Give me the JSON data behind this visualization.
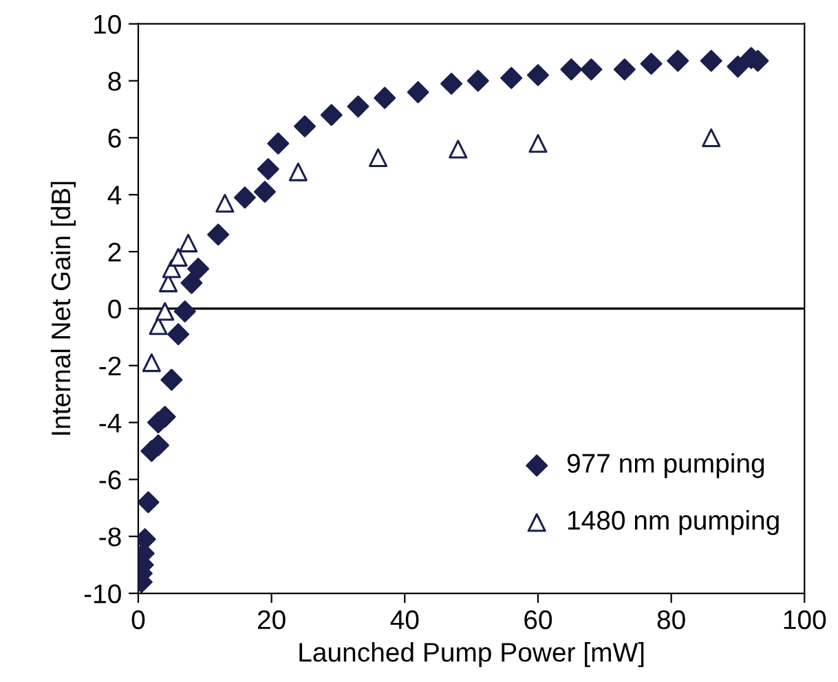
{
  "chart_data": {
    "type": "scatter",
    "xlabel": "Launched Pump Power [mW]",
    "ylabel": "Internal Net Gain [dB]",
    "xlim": [
      0,
      100
    ],
    "ylim": [
      -10,
      10
    ],
    "xticks": [
      0,
      20,
      40,
      60,
      80,
      100
    ],
    "yticks": [
      -10,
      -8,
      -6,
      -4,
      -2,
      0,
      2,
      4,
      6,
      8,
      10
    ],
    "grid": false,
    "legend": "bottom right",
    "ref_lines": [
      {
        "axis": "y",
        "value": 0,
        "color": "#000000"
      }
    ],
    "series": [
      {
        "name": "977 nm pumping",
        "color": "#1a1f4e",
        "marker": "diamond",
        "x": [
          0.5,
          0.5,
          0.7,
          0.8,
          1,
          1.5,
          2,
          3,
          3,
          4,
          5,
          6,
          7,
          8,
          8.5,
          9,
          12,
          16,
          19,
          19.5,
          21,
          25,
          29,
          33,
          37,
          42,
          47,
          51,
          56,
          60,
          65,
          68,
          73,
          77,
          81,
          86,
          90,
          92,
          93
        ],
        "values": [
          -9.6,
          -9.3,
          -9.0,
          -8.6,
          -8.1,
          -6.8,
          -5.0,
          -4.8,
          -4.0,
          -3.8,
          -2.5,
          -0.9,
          -0.1,
          0.9,
          null,
          1.4,
          2.6,
          3.9,
          4.1,
          4.9,
          5.8,
          6.4,
          6.8,
          7.1,
          7.4,
          7.6,
          7.9,
          8.0,
          8.1,
          8.2,
          8.4,
          8.4,
          8.4,
          8.6,
          8.7,
          8.7,
          8.5,
          8.8,
          8.7
        ]
      },
      {
        "name": "1480 nm pumping",
        "color": "#1a1f4e",
        "marker": "triangle",
        "x": [
          2,
          3,
          4,
          4.5,
          5,
          6,
          7.5,
          13,
          24,
          36,
          48,
          60,
          86
        ],
        "values": [
          -1.9,
          -0.6,
          -0.1,
          0.9,
          1.4,
          1.8,
          2.3,
          3.7,
          4.8,
          5.3,
          5.6,
          5.8,
          6.0
        ]
      }
    ]
  }
}
